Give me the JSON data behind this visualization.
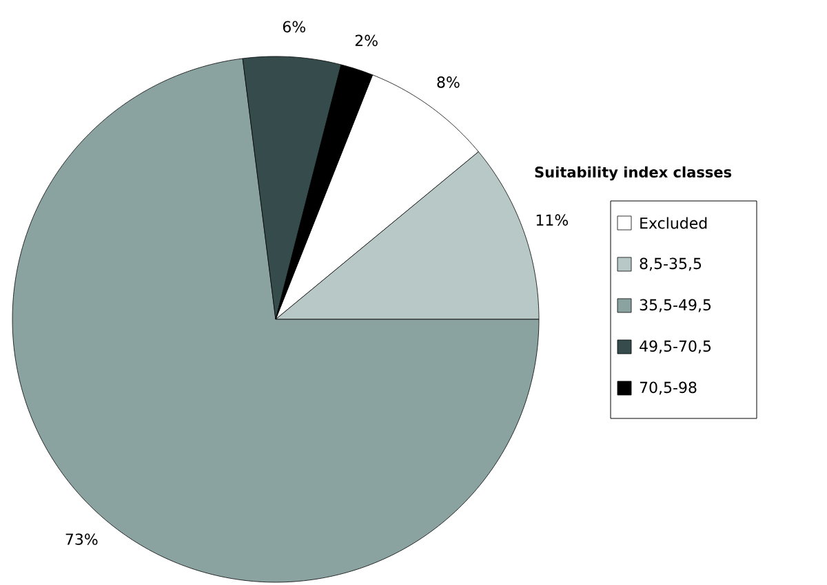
{
  "chart_data": {
    "type": "pie",
    "legend_title": "Suitability index classes",
    "categories": [
      "Excluded",
      "8,5-35,5",
      "35,5-49,5",
      "49,5-70,5",
      "70,5-98"
    ],
    "values": [
      8,
      11,
      73,
      6,
      2
    ],
    "value_labels": [
      "8%",
      "11%",
      "73%",
      "6%",
      "2%"
    ],
    "colors": [
      "#ffffff",
      "#b8c8c6",
      "#8aa2a0",
      "#364c4c",
      "#000000"
    ],
    "legend": "right"
  }
}
